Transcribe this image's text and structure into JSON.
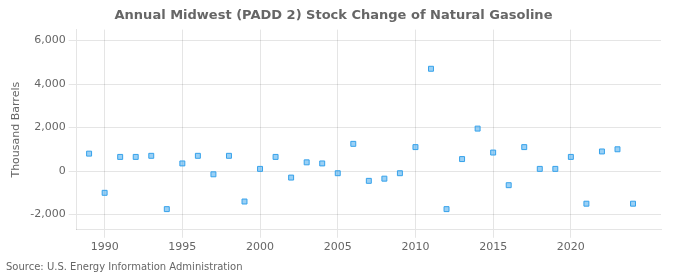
{
  "chart_data": {
    "type": "scatter",
    "title": "Annual Midwest (PADD 2) Stock Change of Natural Gasoline",
    "ylabel": "Thousand Barrels",
    "annotations": [
      "Source: U.S. Energy Information Administration"
    ],
    "marker": "square",
    "grid": true,
    "xlim": [
      1988.2,
      2025.8
    ],
    "xticks": [
      1990,
      1995,
      2000,
      2005,
      2010,
      2015,
      2020
    ],
    "ylim": [
      -2700,
      6500
    ],
    "yticks": [
      {
        "value": -2000,
        "label": "-2,000"
      },
      0,
      {
        "value": 2000,
        "label": "2,000"
      },
      {
        "value": 4000,
        "label": "4,000"
      },
      {
        "value": 6000,
        "label": "6,000"
      }
    ],
    "x": [
      1989,
      1990,
      1991,
      1992,
      1993,
      1994,
      1995,
      1996,
      1997,
      1998,
      1999,
      2000,
      2001,
      2002,
      2003,
      2004,
      2005,
      2006,
      2007,
      2008,
      2009,
      2010,
      2011,
      2012,
      2013,
      2014,
      2015,
      2016,
      2017,
      2018,
      2019,
      2020,
      2021,
      2022,
      2023,
      2024
    ],
    "values": [
      800,
      -1000,
      650,
      650,
      700,
      -1750,
      350,
      700,
      -150,
      700,
      -1400,
      100,
      650,
      -300,
      400,
      350,
      -100,
      1250,
      -450,
      -350,
      -100,
      1100,
      4700,
      -1750,
      550,
      1950,
      850,
      -650,
      1100,
      100,
      100,
      650,
      -1500,
      900,
      1000,
      -1500
    ]
  }
}
